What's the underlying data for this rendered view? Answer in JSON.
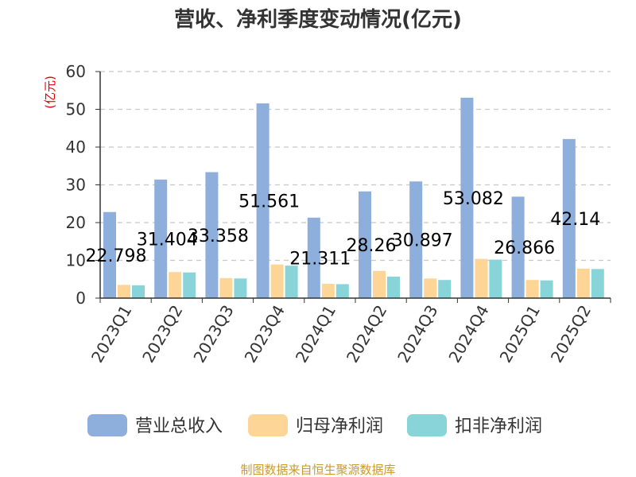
{
  "chart_data": {
    "type": "bar",
    "title": "营收、净利季度变动情况(亿元)",
    "ylabel": "(亿元)",
    "xlabel": "",
    "ylim": [
      0,
      60
    ],
    "yticks": [
      0,
      10,
      20,
      30,
      40,
      50,
      60
    ],
    "grid": true,
    "legend_position": "bottom",
    "categories": [
      "2023Q1",
      "2023Q2",
      "2023Q3",
      "2023Q4",
      "2024Q1",
      "2024Q2",
      "2024Q3",
      "2024Q4",
      "2025Q1",
      "2025Q2"
    ],
    "series": [
      {
        "name": "营业总收入",
        "color": "#8eaedb",
        "values": [
          22.798,
          31.404,
          33.358,
          51.561,
          21.311,
          28.26,
          30.897,
          53.082,
          26.866,
          42.14
        ],
        "data_labels": [
          "22.798",
          "31.404",
          "33.358",
          "51.561",
          "21.311",
          "28.26",
          "30.897",
          "53.082",
          "26.866",
          "42.14"
        ]
      },
      {
        "name": "归母净利润",
        "color": "#fdd596",
        "values": [
          3.5,
          6.9,
          5.3,
          8.9,
          3.8,
          7.2,
          5.2,
          10.4,
          4.8,
          7.8
        ]
      },
      {
        "name": "扣非净利润",
        "color": "#88d4d8",
        "values": [
          3.4,
          6.8,
          5.2,
          8.6,
          3.7,
          5.7,
          4.8,
          10.2,
          4.7,
          7.7
        ]
      }
    ]
  },
  "source": "制图数据来自恒生聚源数据库"
}
